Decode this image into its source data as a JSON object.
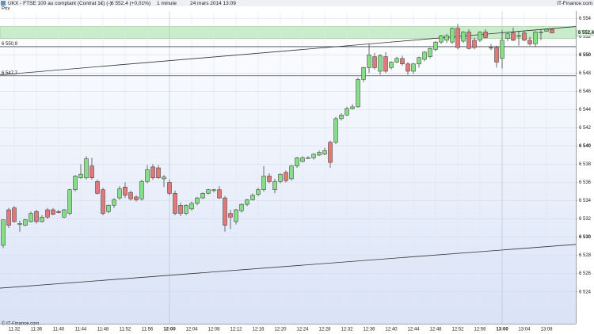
{
  "chart_data": {
    "type": "candlestick",
    "title": "UKX - FTSE 100 au comptant (Contrat 1€) (-)",
    "quote": "6 552,4 (+0,01%)",
    "interval": "1 minute",
    "date": "24 mars 2014 13:09",
    "source": "IT-Finance.com",
    "legend": "Prix",
    "footer": "© IT-Finance.com",
    "up_color": "#86df86",
    "down_color": "#e07a7a",
    "grid": true,
    "categories": [
      null,
      null,
      "11:32",
      null,
      null,
      null,
      "11:36",
      null,
      null,
      null,
      "11:40",
      null,
      null,
      null,
      "11:44",
      null,
      null,
      null,
      "11:48",
      null,
      null,
      null,
      "11:52",
      null,
      null,
      null,
      "11:56",
      null,
      null,
      null,
      "12:00",
      null,
      null,
      null,
      "12:04",
      null,
      null,
      null,
      "12:08",
      null,
      null,
      null,
      "12:12",
      null,
      null,
      null,
      "12:16",
      null,
      null,
      null,
      "12:20",
      null,
      null,
      null,
      "12:24",
      null,
      null,
      null,
      "12:28",
      null,
      null,
      null,
      "12:32",
      null,
      null,
      null,
      "12:36",
      null,
      null,
      null,
      "12:40",
      null,
      null,
      null,
      "12:44",
      null,
      null,
      null,
      "12:48",
      null,
      null,
      null,
      "12:52",
      null,
      null,
      null,
      "12:56",
      null,
      null,
      null,
      "13:00",
      null,
      null,
      null,
      "13:04",
      null,
      null,
      null,
      "13:08",
      null
    ],
    "open": [
      6529.1,
      6533.0,
      6533.2,
      6531.4,
      6531.3,
      6531.7,
      6532.8,
      6531.7,
      6533.0,
      6533.0,
      6532.8,
      6532.2,
      6532.6,
      6535.2,
      6536.5,
      6536.5,
      6537.8,
      6536.1,
      6535.2,
      6532.8,
      6533.5,
      6534.3,
      6535.5,
      6534.9,
      6534.4,
      6534.2,
      6536.1,
      6537.7,
      6537.6,
      6536.4,
      6536.0,
      6534.8,
      6533.5,
      6532.6,
      6533.1,
      6533.7,
      6534.3,
      6534.8,
      6535.1,
      6535.2,
      6534.3,
      6532.6,
      6531.7,
      6532.9,
      6533.6,
      6534.1,
      6534.7,
      6535.2,
      6536.7,
      6535.2,
      6536.1,
      6537.1,
      6536.4,
      6537.8,
      6538.3,
      6538.7,
      6538.7,
      6539.0,
      6539.1,
      6540.4,
      6540.4,
      6543.0,
      6543.4,
      6544.1,
      6544.3,
      6547.3,
      6548.6,
      6549.8,
      6548.2,
      6549.8,
      6548.6,
      6549.2,
      6549.6,
      6549.0,
      6548.2,
      6549.0,
      6549.5,
      6549.8,
      6550.6,
      6551.4,
      6551.6,
      6551.4,
      6552.9,
      6551.5,
      6552.5,
      6551.6,
      6551.6,
      6552.5,
      6550.8,
      6550.8,
      6549.6,
      6551.8,
      6552.4,
      6552.1,
      6552.4,
      6551.6,
      6551.2,
      6552.5,
      6552.6,
      6552.8
    ],
    "high": [
      6531.9,
      6533.2,
      6533.4,
      6531.8,
      6532.0,
      6532.8,
      6533.0,
      6532.4,
      6533.2,
      6533.2,
      6533.0,
      6533.1,
      6535.3,
      6536.8,
      6538.0,
      6538.9,
      6538.7,
      6536.3,
      6535.4,
      6533.6,
      6534.3,
      6535.6,
      6536.0,
      6535.1,
      6534.6,
      6536.3,
      6537.9,
      6538.0,
      6537.9,
      6536.8,
      6536.3,
      6535.1,
      6533.8,
      6533.6,
      6533.9,
      6534.4,
      6534.9,
      6535.3,
      6535.3,
      6535.6,
      6534.5,
      6533.0,
      6533.1,
      6533.7,
      6534.2,
      6534.8,
      6535.4,
      6537.8,
      6537.0,
      6536.4,
      6537.0,
      6537.3,
      6537.9,
      6538.8,
      6538.9,
      6538.9,
      6539.2,
      6539.5,
      6539.8,
      6540.6,
      6543.2,
      6543.6,
      6544.3,
      6544.6,
      6547.5,
      6548.7,
      6551.2,
      6550.2,
      6550.1,
      6550.3,
      6549.3,
      6549.8,
      6549.9,
      6549.2,
      6549.1,
      6549.8,
      6550.4,
      6550.8,
      6551.5,
      6552.2,
      6552.3,
      6553.0,
      6553.4,
      6552.6,
      6552.8,
      6551.9,
      6552.6,
      6552.8,
      6551.2,
      6551.0,
      6552.7,
      6552.4,
      6553.0,
      6552.6,
      6552.6,
      6552.0,
      6552.6,
      6552.8,
      6552.9,
      6552.9
    ],
    "low": [
      6528.8,
      6531.0,
      6531.6,
      6530.6,
      6531.2,
      6531.6,
      6531.5,
      6531.6,
      6532.0,
      6532.4,
      6532.6,
      6532.1,
      6532.4,
      6535.0,
      6536.4,
      6536.3,
      6536.3,
      6534.7,
      6532.4,
      6532.6,
      6533.2,
      6534.1,
      6534.3,
      6534.0,
      6533.9,
      6534.0,
      6535.9,
      6536.3,
      6536.4,
      6535.5,
      6534.6,
      6532.4,
      6532.3,
      6532.4,
      6532.9,
      6533.5,
      6534.2,
      6534.7,
      6534.9,
      6534.2,
      6530.6,
      6530.9,
      6531.4,
      6532.7,
      6533.4,
      6534.0,
      6534.5,
      6535.0,
      6535.9,
      6534.8,
      6535.9,
      6536.0,
      6536.2,
      6537.6,
      6538.2,
      6538.6,
      6538.5,
      6538.9,
      6539.0,
      6537.6,
      6540.2,
      6542.8,
      6543.3,
      6544.0,
      6544.2,
      6547.0,
      6548.0,
      6548.4,
      6547.8,
      6548.0,
      6548.4,
      6549.1,
      6548.8,
      6547.8,
      6547.9,
      6548.6,
      6549.3,
      6549.6,
      6550.4,
      6551.2,
      6551.3,
      6551.2,
      6550.6,
      6551.3,
      6550.6,
      6550.6,
      6551.4,
      6551.8,
      6550.5,
      6548.6,
      6548.5,
      6551.5,
      6551.5,
      6551.0,
      6551.5,
      6551.0,
      6550.9,
      6551.6,
      6552.5,
      6552.4
    ],
    "close": [
      6531.9,
      6531.3,
      6531.7,
      6531.5,
      6531.9,
      6532.6,
      6531.7,
      6532.2,
      6532.2,
      6532.5,
      6532.7,
      6533.0,
      6535.2,
      6536.7,
      6536.9,
      6538.6,
      6536.5,
      6534.8,
      6532.6,
      6533.5,
      6534.1,
      6535.3,
      6534.6,
      6534.2,
      6534.1,
      6536.1,
      6537.4,
      6536.5,
      6536.5,
      6536.6,
      6534.8,
      6532.6,
      6532.6,
      6533.5,
      6533.7,
      6534.3,
      6534.8,
      6535.2,
      6535.2,
      6534.3,
      6531.3,
      6532.2,
      6533.0,
      6533.6,
      6534.1,
      6534.6,
      6535.2,
      6536.7,
      6536.1,
      6536.1,
      6536.9,
      6536.2,
      6537.8,
      6538.7,
      6538.7,
      6538.7,
      6539.1,
      6539.3,
      6539.5,
      6538.2,
      6543.0,
      6543.4,
      6544.1,
      6544.3,
      6547.3,
      6548.6,
      6550.0,
      6548.6,
      6549.9,
      6548.2,
      6549.2,
      6549.6,
      6549.0,
      6548.2,
      6549.0,
      6549.7,
      6550.3,
      6550.7,
      6551.4,
      6552.1,
      6552.1,
      6552.9,
      6550.8,
      6552.5,
      6550.7,
      6550.8,
      6552.5,
      6551.9,
      6550.8,
      6549.2,
      6551.6,
      6552.3,
      6551.6,
      6552.1,
      6551.6,
      6551.2,
      6552.5,
      6552.5,
      6552.8,
      6552.4
    ],
    "ylim": [
      6520.5,
      6554.8
    ],
    "yticks": [
      {
        "value": 6524,
        "label": "6 524"
      },
      {
        "value": 6526,
        "label": "6 526"
      },
      {
        "value": 6528,
        "label": "6 528"
      },
      {
        "value": 6530,
        "label": "6 530"
      },
      {
        "value": 6532,
        "label": "6 532"
      },
      {
        "value": 6534,
        "label": "6 534"
      },
      {
        "value": 6536,
        "label": "6 536"
      },
      {
        "value": 6538,
        "label": "6 538"
      },
      {
        "value": 6540,
        "label": "6 540"
      },
      {
        "value": 6542,
        "label": "6 542"
      },
      {
        "value": 6544,
        "label": "6 544"
      },
      {
        "value": 6546,
        "label": "6 546"
      },
      {
        "value": 6548,
        "label": "6 548"
      },
      {
        "value": 6550,
        "label": "6 550"
      },
      {
        "value": 6552,
        "label": "6 552"
      },
      {
        "value": 6554,
        "label": "6 554"
      }
    ],
    "zone": [
      6551.8,
      6553.1
    ],
    "zone_color": "#9fe09f",
    "hlines": [
      {
        "value": 6550.9,
        "label": "6 550,9"
      },
      {
        "value": 6547.7,
        "label": "6 547,7"
      }
    ],
    "trendlines": [
      {
        "start": 6547.8,
        "end": 6553.1
      },
      {
        "start": 6524.4,
        "end": 6529.2
      }
    ],
    "last": {
      "value": 6552.4,
      "label": "6 552,4"
    }
  }
}
